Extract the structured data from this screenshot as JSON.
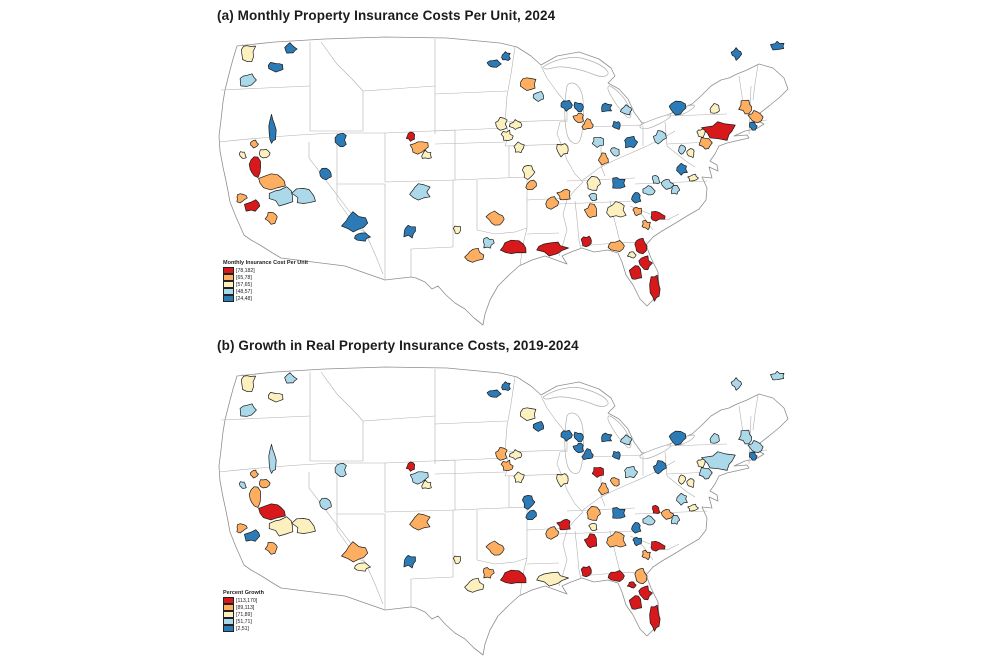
{
  "figure_background": "#ffffff",
  "chart_data": {
    "type": "choropleth-map-pair",
    "description": "Two US county-level choropleth maps; highlighted metro counties colored by 5 bins, other areas white with gray state borders",
    "palette": {
      "red": "#d7191c",
      "orange": "#fdae61",
      "cream": "#fcf0bf",
      "lightblue": "#abd9e9",
      "blue": "#2c7bb6",
      "state_border": "#b0b0b0",
      "nation_border": "#8f8f8f",
      "county_border": "#1a1a1a"
    },
    "panels": [
      {
        "title": "(a) Monthly Property Insurance Costs Per Unit, 2024",
        "legend_title": "Monthly Insurance Cost Per Unit",
        "bins": [
          {
            "label": "[78,182]",
            "color_key": "red"
          },
          {
            "label": "[65,78]",
            "color_key": "orange"
          },
          {
            "label": "[57,65]",
            "color_key": "cream"
          },
          {
            "label": "[48,57]",
            "color_key": "lightblue"
          },
          {
            "label": "[24,48]",
            "color_key": "blue"
          }
        ]
      },
      {
        "title": "(b) Growth in Real Property Insurance Costs, 2019-2024",
        "legend_title": "Percent Growth",
        "bins": [
          {
            "label": "[113,170]",
            "color_key": "red"
          },
          {
            "label": "[89,113]",
            "color_key": "orange"
          },
          {
            "label": "[71,89]",
            "color_key": "cream"
          },
          {
            "label": "[51,71]",
            "color_key": "lightblue"
          },
          {
            "label": "[2,51]",
            "color_key": "blue"
          }
        ]
      }
    ],
    "category_codes": {
      "R": "red",
      "O": "orange",
      "C": "cream",
      "L": "lightblue",
      "B": "blue"
    },
    "county_format": [
      "x",
      "y",
      "radius",
      "scale_x",
      "scale_y",
      "category_panel_a",
      "category_panel_b"
    ],
    "counties": [
      [
        33,
        18,
        7,
        1,
        1.2,
        "C",
        "C"
      ],
      [
        76,
        15,
        5,
        1.2,
        1,
        "B",
        "L"
      ],
      [
        62,
        33,
        6,
        1.3,
        0.8,
        "B",
        "C"
      ],
      [
        33,
        46,
        7,
        1.3,
        0.9,
        "L",
        "L"
      ],
      [
        279,
        30,
        5,
        1.3,
        0.8,
        "B",
        "B"
      ],
      [
        291,
        22,
        4,
        1,
        1,
        "B",
        "B"
      ],
      [
        286,
        90,
        6,
        1,
        1,
        "C",
        "O"
      ],
      [
        57,
        96,
        6,
        0.55,
        2.4,
        "B",
        "L"
      ],
      [
        39,
        110,
        4,
        1,
        1,
        "O",
        "O"
      ],
      [
        49,
        119,
        5,
        1,
        0.8,
        "C",
        "O"
      ],
      [
        28,
        121,
        4,
        0.8,
        1,
        "C",
        "L"
      ],
      [
        40,
        133,
        7,
        0.8,
        1.3,
        "R",
        "O"
      ],
      [
        58,
        147,
        9,
        1.3,
        0.8,
        "O",
        "R"
      ],
      [
        126,
        106,
        5,
        1,
        1.3,
        "B",
        "L"
      ],
      [
        196,
        103,
        4,
        1,
        1,
        "R",
        "R"
      ],
      [
        204,
        113,
        7,
        1.2,
        0.9,
        "O",
        "L"
      ],
      [
        211,
        121,
        5,
        1,
        0.8,
        "C",
        "C"
      ],
      [
        112,
        140,
        6,
        1,
        1,
        "B",
        "L"
      ],
      [
        66,
        162,
        9,
        1.2,
        0.9,
        "L",
        "C"
      ],
      [
        90,
        162,
        9,
        1.2,
        0.9,
        "L",
        "C"
      ],
      [
        37,
        172,
        6,
        1.2,
        0.9,
        "R",
        "B"
      ],
      [
        26,
        164,
        5,
        1,
        0.8,
        "O",
        "O"
      ],
      [
        57,
        183,
        6,
        1,
        1,
        "O",
        "O"
      ],
      [
        140,
        189,
        11,
        1.2,
        0.9,
        "B",
        "O"
      ],
      [
        147,
        203,
        6,
        1.2,
        0.7,
        "B",
        "C"
      ],
      [
        194,
        197,
        6,
        1,
        1,
        "B",
        "B"
      ],
      [
        205,
        158,
        8,
        1.2,
        0.9,
        "L",
        "O"
      ],
      [
        242,
        196,
        4,
        0.8,
        1.2,
        "C",
        "C"
      ],
      [
        281,
        185,
        7,
        1.2,
        0.9,
        "O",
        "O"
      ],
      [
        273,
        209,
        5,
        1,
        1,
        "L",
        "O"
      ],
      [
        259,
        221,
        7,
        1.2,
        0.9,
        "O",
        "C"
      ],
      [
        298,
        214,
        9,
        1.4,
        0.8,
        "R",
        "R"
      ],
      [
        337,
        214,
        9,
        1.6,
        0.7,
        "R",
        "C"
      ],
      [
        372,
        207,
        5,
        1,
        1,
        "R",
        "R"
      ],
      [
        401,
        212,
        6,
        1.2,
        0.8,
        "O",
        "R"
      ],
      [
        425,
        212,
        6,
        1,
        1.2,
        "R",
        "O"
      ],
      [
        417,
        221,
        4,
        1,
        0.8,
        "C",
        "R"
      ],
      [
        430,
        229,
        6,
        1,
        1.1,
        "R",
        "R"
      ],
      [
        421,
        239,
        6,
        1,
        1.3,
        "R",
        "R"
      ],
      [
        440,
        255,
        6,
        0.8,
        2.2,
        "R",
        "R"
      ],
      [
        402,
        176,
        8,
        1.1,
        1,
        "C",
        "O"
      ],
      [
        376,
        178,
        6,
        1,
        1.1,
        "O",
        "R"
      ],
      [
        349,
        161,
        6,
        1,
        1,
        "O",
        "R"
      ],
      [
        378,
        150,
        7,
        1.1,
        0.9,
        "C",
        "O"
      ],
      [
        403,
        149,
        6,
        1.1,
        0.9,
        "B",
        "B"
      ],
      [
        378,
        163,
        4,
        1,
        1,
        "L",
        "C"
      ],
      [
        422,
        177,
        4,
        1,
        1,
        "O",
        "B"
      ],
      [
        337,
        168,
        6,
        1,
        1,
        "O",
        "O"
      ],
      [
        316,
        152,
        5,
        1,
        1,
        "O",
        "B"
      ],
      [
        421,
        164,
        5,
        1,
        1,
        "B",
        "B"
      ],
      [
        434,
        157,
        5,
        1,
        1,
        "L",
        "L"
      ],
      [
        441,
        146,
        4,
        1,
        1,
        "L",
        "R"
      ],
      [
        452,
        150,
        5,
        1.1,
        0.9,
        "L",
        "O"
      ],
      [
        460,
        156,
        4,
        1,
        1,
        "L",
        "L"
      ],
      [
        442,
        182,
        6,
        1.2,
        0.8,
        "R",
        "R"
      ],
      [
        431,
        191,
        4,
        1,
        1,
        "O",
        "O"
      ],
      [
        313,
        50,
        7,
        1.1,
        1,
        "O",
        "C"
      ],
      [
        324,
        62,
        5,
        1,
        1,
        "L",
        "B"
      ],
      [
        352,
        71,
        5,
        1,
        1,
        "B",
        "B"
      ],
      [
        364,
        73,
        5,
        1,
        1,
        "B",
        "B"
      ],
      [
        391,
        74,
        5,
        1.1,
        0.9,
        "B",
        "B"
      ],
      [
        412,
        76,
        5,
        1.1,
        0.9,
        "L",
        "L"
      ],
      [
        364,
        84,
        5,
        1,
        1,
        "O",
        "B"
      ],
      [
        373,
        91,
        5,
        1,
        1,
        "O",
        "B"
      ],
      [
        402,
        91,
        4,
        1,
        1,
        "B",
        "B"
      ],
      [
        383,
        108,
        5,
        1.1,
        1,
        "L",
        "R"
      ],
      [
        416,
        108,
        6,
        1.1,
        1,
        "B",
        "L"
      ],
      [
        388,
        125,
        5,
        1,
        1,
        "O",
        "O"
      ],
      [
        400,
        118,
        4,
        1,
        1,
        "L",
        "O"
      ],
      [
        444,
        104,
        6,
        1,
        1,
        "L",
        "B"
      ],
      [
        462,
        74,
        7,
        1.2,
        0.9,
        "B",
        "B"
      ],
      [
        500,
        74,
        5,
        1,
        1,
        "C",
        "L"
      ],
      [
        531,
        73,
        6,
        1,
        1.1,
        "O",
        "L"
      ],
      [
        505,
        97,
        10,
        1.5,
        0.9,
        "R",
        "L"
      ],
      [
        486,
        99,
        4,
        1,
        1,
        "C",
        "C"
      ],
      [
        491,
        109,
        6,
        1,
        1,
        "O",
        "L"
      ],
      [
        467,
        116,
        4,
        1,
        1,
        "L",
        "C"
      ],
      [
        476,
        119,
        4,
        1,
        1,
        "C",
        "C"
      ],
      [
        467,
        135,
        5,
        1,
        1,
        "B",
        "L"
      ],
      [
        478,
        144,
        4,
        1.2,
        0.8,
        "C",
        "C"
      ],
      [
        540,
        83,
        6,
        1.1,
        1,
        "O",
        "L"
      ],
      [
        538,
        92,
        4,
        1,
        0.9,
        "B",
        "B"
      ],
      [
        522,
        20,
        5,
        1,
        1,
        "B",
        "L"
      ],
      [
        563,
        12,
        5,
        1.2,
        0.8,
        "B",
        "L"
      ],
      [
        301,
        91,
        5,
        1.1,
        0.9,
        "C",
        "C"
      ],
      [
        292,
        102,
        5,
        1,
        1,
        "C",
        "O"
      ],
      [
        304,
        114,
        5,
        1,
        1,
        "C",
        "C"
      ],
      [
        347,
        116,
        6,
        1,
        1,
        "C",
        "C"
      ],
      [
        314,
        138,
        6,
        1,
        1,
        "C",
        "B"
      ]
    ]
  }
}
